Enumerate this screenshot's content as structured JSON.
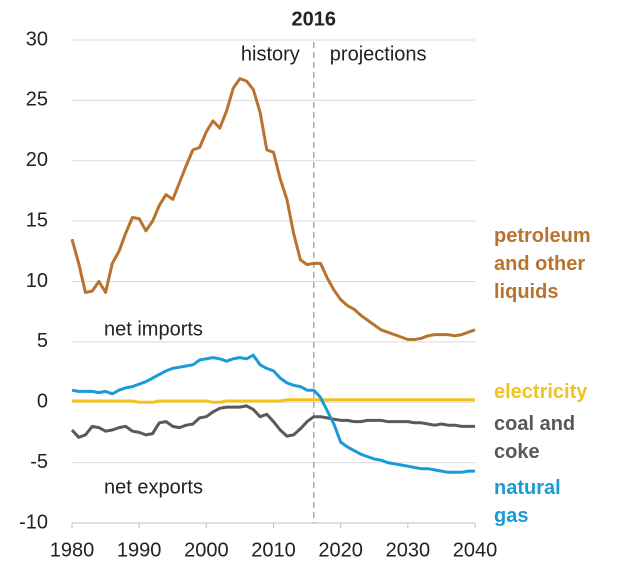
{
  "chart_data": {
    "type": "line",
    "divider": {
      "label": "2016",
      "x": 2016
    },
    "annotations": [
      "history",
      "projections",
      "net imports",
      "net exports"
    ],
    "x": [
      1980,
      1981,
      1982,
      1983,
      1984,
      1985,
      1986,
      1987,
      1988,
      1989,
      1990,
      1991,
      1992,
      1993,
      1994,
      1995,
      1996,
      1997,
      1998,
      1999,
      2000,
      2001,
      2002,
      2003,
      2004,
      2005,
      2006,
      2007,
      2008,
      2009,
      2010,
      2011,
      2012,
      2013,
      2014,
      2015,
      2016,
      2017,
      2018,
      2019,
      2020,
      2021,
      2022,
      2023,
      2024,
      2025,
      2026,
      2027,
      2028,
      2029,
      2030,
      2031,
      2032,
      2033,
      2034,
      2035,
      2036,
      2037,
      2038,
      2039,
      2040
    ],
    "series": [
      {
        "name": "petroleum and other liquids",
        "color": "#b8732f",
        "values": [
          13.5,
          11.5,
          9.1,
          9.2,
          10.0,
          9.1,
          11.5,
          12.5,
          14.0,
          15.3,
          15.2,
          14.2,
          15.0,
          16.3,
          17.2,
          16.8,
          18.2,
          19.6,
          20.9,
          21.1,
          22.4,
          23.3,
          22.7,
          24.1,
          26.0,
          26.8,
          26.6,
          25.9,
          24.0,
          20.9,
          20.7,
          18.5,
          16.8,
          14.0,
          11.8,
          11.4,
          11.5,
          11.5,
          10.3,
          9.3,
          8.5,
          8.0,
          7.7,
          7.2,
          6.8,
          6.4,
          6.0,
          5.8,
          5.6,
          5.4,
          5.2,
          5.2,
          5.3,
          5.5,
          5.6,
          5.6,
          5.6,
          5.5,
          5.6,
          5.8,
          6.0
        ]
      },
      {
        "name": "electricity",
        "color": "#f2c31b",
        "values": [
          0.1,
          0.1,
          0.1,
          0.1,
          0.1,
          0.1,
          0.1,
          0.1,
          0.1,
          0.1,
          0.0,
          0.0,
          0.0,
          0.1,
          0.1,
          0.1,
          0.1,
          0.1,
          0.1,
          0.1,
          0.1,
          0.0,
          0.0,
          0.1,
          0.1,
          0.1,
          0.1,
          0.1,
          0.1,
          0.1,
          0.1,
          0.1,
          0.2,
          0.2,
          0.2,
          0.2,
          0.2,
          0.2,
          0.2,
          0.2,
          0.2,
          0.2,
          0.2,
          0.2,
          0.2,
          0.2,
          0.2,
          0.2,
          0.2,
          0.2,
          0.2,
          0.2,
          0.2,
          0.2,
          0.2,
          0.2,
          0.2,
          0.2,
          0.2,
          0.2,
          0.2
        ]
      },
      {
        "name": "coal and coke",
        "color": "#595959",
        "values": [
          -2.3,
          -2.9,
          -2.7,
          -2.0,
          -2.1,
          -2.4,
          -2.3,
          -2.1,
          -2.0,
          -2.4,
          -2.5,
          -2.7,
          -2.6,
          -1.7,
          -1.6,
          -2.0,
          -2.1,
          -1.9,
          -1.8,
          -1.3,
          -1.2,
          -0.8,
          -0.5,
          -0.4,
          -0.4,
          -0.4,
          -0.3,
          -0.6,
          -1.2,
          -1.0,
          -1.6,
          -2.3,
          -2.8,
          -2.7,
          -2.2,
          -1.6,
          -1.2,
          -1.2,
          -1.3,
          -1.4,
          -1.5,
          -1.5,
          -1.6,
          -1.6,
          -1.5,
          -1.5,
          -1.5,
          -1.6,
          -1.6,
          -1.6,
          -1.6,
          -1.7,
          -1.7,
          -1.8,
          -1.9,
          -1.8,
          -1.9,
          -1.9,
          -2.0,
          -2.0,
          -2.0
        ]
      },
      {
        "name": "natural gas",
        "color": "#1a9bd7",
        "values": [
          1.0,
          0.9,
          0.9,
          0.9,
          0.8,
          0.9,
          0.7,
          1.0,
          1.2,
          1.3,
          1.5,
          1.7,
          2.0,
          2.3,
          2.6,
          2.8,
          2.9,
          3.0,
          3.1,
          3.5,
          3.6,
          3.7,
          3.6,
          3.4,
          3.6,
          3.7,
          3.6,
          3.9,
          3.1,
          2.8,
          2.6,
          2.0,
          1.6,
          1.4,
          1.3,
          1.0,
          1.0,
          0.4,
          -0.7,
          -1.8,
          -3.3,
          -3.7,
          -4.0,
          -4.3,
          -4.5,
          -4.7,
          -4.8,
          -5.0,
          -5.1,
          -5.2,
          -5.3,
          -5.4,
          -5.5,
          -5.5,
          -5.6,
          -5.7,
          -5.8,
          -5.8,
          -5.8,
          -5.7,
          -5.7
        ]
      }
    ],
    "xlim": [
      1980,
      2040
    ],
    "xticks": [
      1980,
      1990,
      2000,
      2010,
      2020,
      2030,
      2040
    ],
    "ylim": [
      -10,
      30
    ],
    "yticks": [
      -10,
      -5,
      0,
      5,
      10,
      15,
      20,
      25,
      30
    ],
    "grid": true
  }
}
